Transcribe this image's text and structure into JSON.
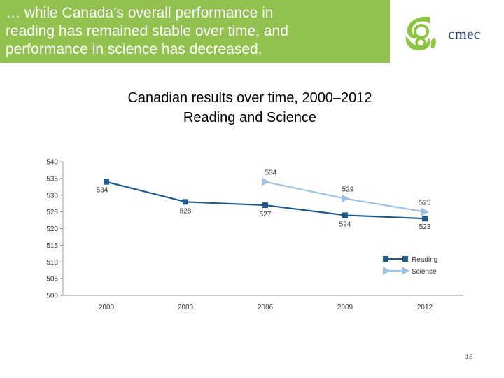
{
  "slide": {
    "heading_lines": [
      "… while Canada’s overall performance in",
      "reading has remained stable over time, and",
      "performance in science has decreased."
    ],
    "logo_text": "cmec",
    "page_number": "18",
    "colors": {
      "header_band": "#92c150",
      "logo_green": "#8cc63f",
      "logo_text": "#2a4a73"
    }
  },
  "chart_data": {
    "type": "line",
    "title_lines": [
      "Canadian results over time, 2000–2012",
      "Reading and Science"
    ],
    "categories": [
      "2000",
      "2003",
      "2006",
      "2009",
      "2012"
    ],
    "ylim": [
      500,
      540
    ],
    "yticks": [
      "500",
      "505",
      "510",
      "515",
      "520",
      "525",
      "530",
      "535",
      "540"
    ],
    "grid": false,
    "legend_placement": "bottom-right",
    "series": [
      {
        "name": "Reading",
        "values": [
          534,
          528,
          527,
          524,
          523
        ],
        "color": "#1f5a8c",
        "marker": "square"
      },
      {
        "name": "Science",
        "values": [
          null,
          null,
          534,
          529,
          525
        ],
        "color": "#9dc3e6",
        "marker": "triangle"
      }
    ]
  }
}
